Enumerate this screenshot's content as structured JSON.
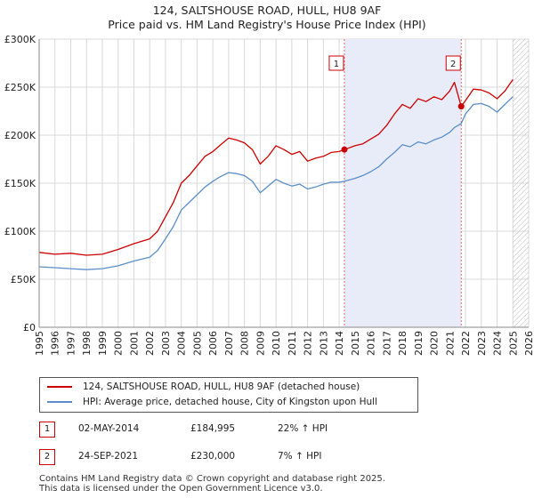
{
  "title_line1": "124, SALTSHOUSE ROAD, HULL, HU8 9AF",
  "title_line2": "Price paid vs. HM Land Registry's House Price Index (HPI)",
  "legend": {
    "property_label": "124, SALTSHOUSE ROAD, HULL, HU8 9AF (detached house)",
    "hpi_label": "HPI: Average price, detached house, City of Kingston upon Hull"
  },
  "sales": [
    {
      "num": "1",
      "date": "02-MAY-2014",
      "price": "£184,995",
      "hpi": "22% ↑ HPI"
    },
    {
      "num": "2",
      "date": "24-SEP-2021",
      "price": "£230,000",
      "hpi": "7% ↑ HPI"
    }
  ],
  "footer": {
    "line1": "Contains HM Land Registry data © Crown copyright and database right 2025.",
    "line2": "This data is licensed under the Open Government Licence v3.0."
  },
  "colors": {
    "property": "#cc0000",
    "hpi": "#5b8ec9",
    "shade": "#e8ecf8",
    "grid": "#d8d8d8"
  },
  "chart_data": {
    "type": "line",
    "title": "124, SALTSHOUSE ROAD, HULL, HU8 9AF",
    "subtitle": "Price paid vs. HM Land Registry's House Price Index (HPI)",
    "xlabel": "",
    "ylabel": "",
    "xlim": [
      1995,
      2026
    ],
    "ylim": [
      0,
      300000
    ],
    "x_ticks": [
      1995,
      1996,
      1997,
      1998,
      1999,
      2000,
      2001,
      2002,
      2003,
      2004,
      2005,
      2006,
      2007,
      2008,
      2009,
      2010,
      2011,
      2012,
      2013,
      2014,
      2015,
      2016,
      2017,
      2018,
      2019,
      2020,
      2021,
      2022,
      2023,
      2024,
      2025,
      2026
    ],
    "y_ticks": [
      0,
      50000,
      100000,
      150000,
      200000,
      250000,
      300000
    ],
    "y_tick_labels": [
      "£0",
      "£50K",
      "£100K",
      "£150K",
      "£200K",
      "£250K",
      "£300K"
    ],
    "grid": true,
    "shaded_region": [
      2014.33,
      2021.73
    ],
    "future_hatch_from": 2025.0,
    "markers": [
      {
        "label": "1",
        "x": 2014.33,
        "y": 184995
      },
      {
        "label": "2",
        "x": 2021.73,
        "y": 230000
      }
    ],
    "series": [
      {
        "name": "124, SALTSHOUSE ROAD, HULL, HU8 9AF (detached house)",
        "x": [
          1995.0,
          1996.0,
          1997.0,
          1998.0,
          1999.0,
          2000.0,
          2001.0,
          2002.0,
          2002.5,
          2003.0,
          2003.5,
          2004.0,
          2004.5,
          2005.0,
          2005.5,
          2006.0,
          2006.5,
          2007.0,
          2007.5,
          2008.0,
          2008.5,
          2009.0,
          2009.5,
          2010.0,
          2010.5,
          2011.0,
          2011.5,
          2012.0,
          2012.5,
          2013.0,
          2013.5,
          2014.0,
          2014.33,
          2015.0,
          2015.5,
          2016.0,
          2016.5,
          2017.0,
          2017.5,
          2018.0,
          2018.5,
          2019.0,
          2019.5,
          2020.0,
          2020.5,
          2021.0,
          2021.3,
          2021.73,
          2022.0,
          2022.5,
          2023.0,
          2023.5,
          2024.0,
          2024.5,
          2025.0
        ],
        "values": [
          78000,
          76000,
          77000,
          75000,
          76000,
          81000,
          87000,
          92000,
          100000,
          115000,
          130000,
          150000,
          158000,
          168000,
          178000,
          183000,
          190000,
          197000,
          195000,
          192000,
          185000,
          170000,
          178000,
          189000,
          185000,
          180000,
          183000,
          173000,
          176000,
          178000,
          182000,
          183000,
          184995,
          189000,
          191000,
          196000,
          201000,
          210000,
          222000,
          232000,
          228000,
          238000,
          235000,
          240000,
          237000,
          246000,
          255000,
          230000,
          236000,
          248000,
          247000,
          244000,
          238000,
          246000,
          258000
        ]
      },
      {
        "name": "HPI: Average price, detached house, City of Kingston upon Hull",
        "x": [
          1995.0,
          1996.0,
          1997.0,
          1998.0,
          1999.0,
          2000.0,
          2001.0,
          2002.0,
          2002.5,
          2003.0,
          2003.5,
          2004.0,
          2004.5,
          2005.0,
          2005.5,
          2006.0,
          2006.5,
          2007.0,
          2007.5,
          2008.0,
          2008.5,
          2009.0,
          2009.5,
          2010.0,
          2010.5,
          2011.0,
          2011.5,
          2012.0,
          2012.5,
          2013.0,
          2013.5,
          2014.0,
          2014.33,
          2015.0,
          2015.5,
          2016.0,
          2016.5,
          2017.0,
          2017.5,
          2018.0,
          2018.5,
          2019.0,
          2019.5,
          2020.0,
          2020.5,
          2021.0,
          2021.3,
          2021.73,
          2022.0,
          2022.5,
          2023.0,
          2023.5,
          2024.0,
          2024.5,
          2025.0
        ],
        "values": [
          63000,
          62000,
          61000,
          60000,
          61000,
          64000,
          69000,
          73000,
          80000,
          92000,
          105000,
          122000,
          130000,
          138000,
          146000,
          152000,
          157000,
          161000,
          160000,
          158000,
          152000,
          140000,
          147000,
          154000,
          150000,
          147000,
          149000,
          144000,
          146000,
          149000,
          151000,
          151000,
          152000,
          155000,
          158000,
          162000,
          167000,
          175000,
          182000,
          190000,
          188000,
          193000,
          191000,
          195000,
          198000,
          203000,
          208000,
          212000,
          222000,
          232000,
          233000,
          230000,
          224000,
          232000,
          240000
        ]
      }
    ]
  }
}
